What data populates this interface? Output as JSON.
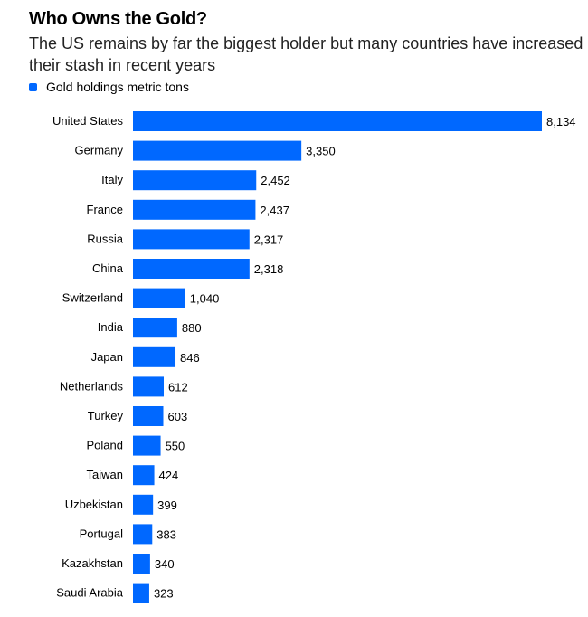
{
  "chart_data": {
    "type": "bar",
    "orientation": "horizontal",
    "title": "Who Owns the Gold?",
    "subtitle": "The US remains by far the biggest holder but many countries have increased their stash in recent years",
    "legend": [
      "Gold holdings metric tons"
    ],
    "legend_placement": "top-left",
    "color": "#0068FF",
    "categories": [
      "United States",
      "Germany",
      "Italy",
      "France",
      "Russia",
      "China",
      "Switzerland",
      "India",
      "Japan",
      "Netherlands",
      "Turkey",
      "Poland",
      "Taiwan",
      "Uzbekistan",
      "Portugal",
      "Kazakhstan",
      "Saudi Arabia"
    ],
    "values": [
      8134,
      3350,
      2452,
      2437,
      2317,
      2318,
      1040,
      880,
      846,
      612,
      603,
      550,
      424,
      399,
      383,
      340,
      323
    ],
    "value_labels": [
      "8,134",
      "3,350",
      "2,452",
      "2,437",
      "2,317",
      "2,318",
      "1,040",
      "880",
      "846",
      "612",
      "603",
      "550",
      "424",
      "399",
      "383",
      "340",
      "323"
    ],
    "xlim": [
      0,
      8134
    ]
  }
}
